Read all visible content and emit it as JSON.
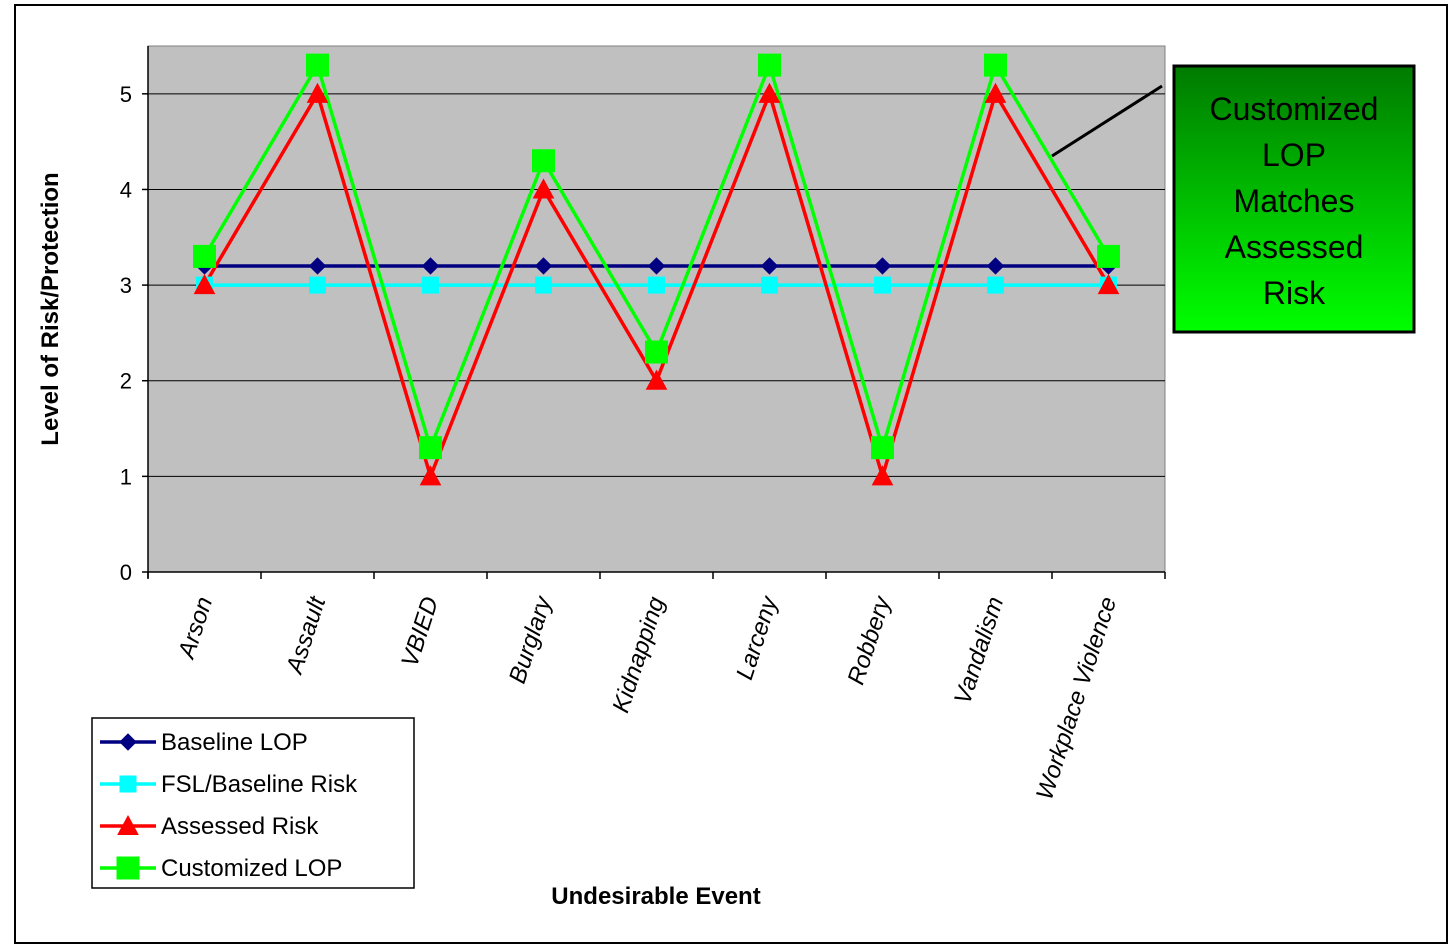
{
  "chart_data": {
    "type": "line",
    "title": "",
    "xlabel": "Undesirable Event",
    "ylabel": "Level of Risk/Protection",
    "ylim": [
      0,
      5.5
    ],
    "yticks": [
      0,
      1,
      2,
      3,
      4,
      5
    ],
    "grid": true,
    "categories": [
      "Arson",
      "Assault",
      "VBIED",
      "Burglary",
      "Kidnapping",
      "Larceny",
      "Robbery",
      "Vandalism",
      "Workplace Violence"
    ],
    "series": [
      {
        "name": "Baseline LOP",
        "values": [
          3.2,
          3.2,
          3.2,
          3.2,
          3.2,
          3.2,
          3.2,
          3.2,
          3.2
        ],
        "color": "#000080",
        "marker": "diamond"
      },
      {
        "name": "FSL/Baseline Risk",
        "values": [
          3,
          3,
          3,
          3,
          3,
          3,
          3,
          3,
          3
        ],
        "color": "#00FFFF",
        "marker": "square"
      },
      {
        "name": "Assessed Risk",
        "values": [
          3,
          5,
          1,
          4,
          2,
          5,
          1,
          5,
          3
        ],
        "color": "#FF0000",
        "marker": "triangle"
      },
      {
        "name": "Customized LOP",
        "values": [
          3.3,
          5.3,
          1.3,
          4.3,
          2.3,
          5.3,
          1.3,
          5.3,
          3.3
        ],
        "color": "#00FF00",
        "marker": "square"
      }
    ],
    "legend_position": "bottom-left",
    "plot_background": "#C0C0C0",
    "annotation": {
      "lines": [
        "Customized",
        "LOP",
        "Matches",
        "Assessed",
        "Risk"
      ],
      "gradient_top": "#007A00",
      "gradient_bottom": "#00FF00"
    }
  }
}
